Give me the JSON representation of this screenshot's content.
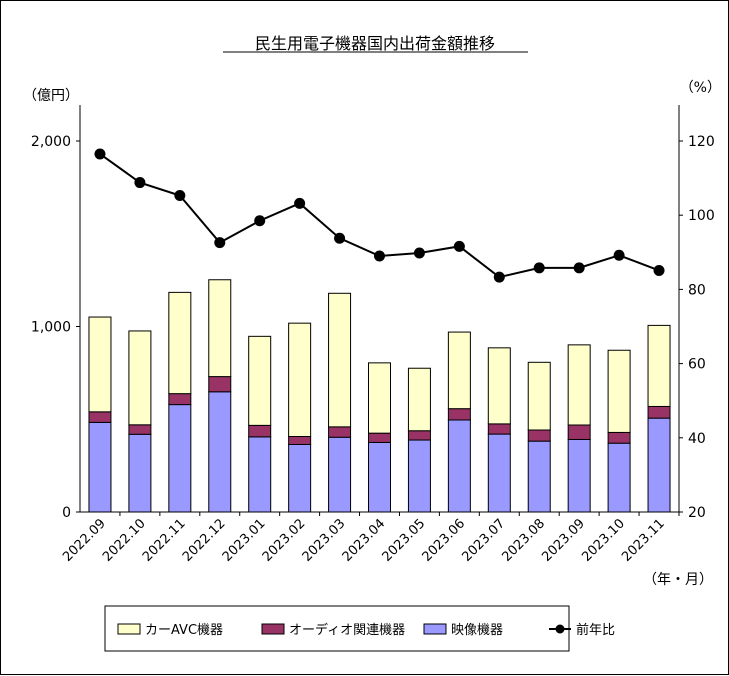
{
  "chart_data": {
    "type": "bar",
    "title": "民生用電子機器国内出荷金額推移",
    "y_unit_left": "（億円）",
    "y_unit_right": "（%）",
    "x_unit": "（年・月）",
    "categories": [
      "2022.09",
      "2022.10",
      "2022.11",
      "2022.12",
      "2023.01",
      "2023.02",
      "2023.03",
      "2023.04",
      "2023.05",
      "2023.06",
      "2023.07",
      "2023.08",
      "2023.09",
      "2023.10",
      "2023.11"
    ],
    "ylim_left": [
      0,
      2000
    ],
    "ylim_right": [
      20,
      130
    ],
    "y_ticks_left": [
      "0",
      "1,000",
      "2,000"
    ],
    "y_ticks_right": [
      "20",
      "40",
      "60",
      "80",
      "100",
      "120"
    ],
    "stacked": true,
    "series": [
      {
        "name": "映像機器",
        "color": "#9999ff",
        "values": [
          483,
          419,
          579,
          648,
          405,
          364,
          403,
          375,
          388,
          496,
          420,
          382,
          391,
          371,
          506
        ]
      },
      {
        "name": "オーディオ関連機器",
        "color": "#993366",
        "values": [
          57,
          51,
          59,
          82,
          62,
          43,
          56,
          50,
          50,
          61,
          55,
          60,
          78,
          58,
          63
        ]
      },
      {
        "name": "カーAVC機器",
        "color": "#ffffcc",
        "values": [
          511,
          506,
          546,
          522,
          480,
          611,
          720,
          379,
          337,
          413,
          410,
          365,
          432,
          443,
          437
        ]
      },
      {
        "name": "前年比",
        "type": "line",
        "axis": "right",
        "color": "#000000",
        "values": [
          116.5,
          108.8,
          105.3,
          92.6,
          98.5,
          103.2,
          93.8,
          89.0,
          89.8,
          91.6,
          83.3,
          85.8,
          85.8,
          89.2,
          85.1
        ]
      }
    ],
    "legend": {
      "position": "bottom",
      "items": [
        "カーAVC機器",
        "オーディオ関連機器",
        "映像機器",
        "前年比"
      ]
    },
    "grid": false
  }
}
